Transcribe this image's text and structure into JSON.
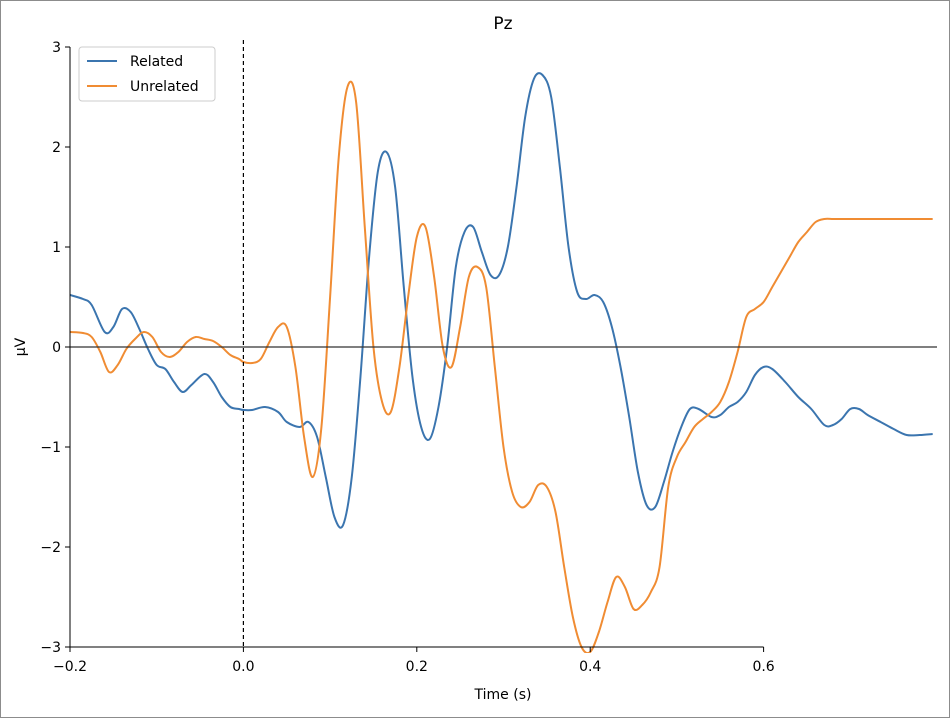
{
  "chart_data": {
    "type": "line",
    "title": "Pz",
    "xlabel": "Time (s)",
    "ylabel": "µV",
    "xlim": [
      -0.2,
      0.8
    ],
    "ylim": [
      -3,
      3
    ],
    "xticks": [
      -0.2,
      0.0,
      0.2,
      0.4,
      0.6
    ],
    "xtick_labels": [
      "−0.2",
      "0.0",
      "0.2",
      "0.4",
      "0.6"
    ],
    "yticks": [
      -3,
      -2,
      -1,
      0,
      1,
      2,
      3
    ],
    "ytick_labels": [
      "−3",
      "−2",
      "−1",
      "0",
      "1",
      "2",
      "3"
    ],
    "legend_position": "top-left",
    "grid": false,
    "series": [
      {
        "name": "Related",
        "color": "#3b75af",
        "x": [
          -0.2,
          -0.185,
          -0.175,
          -0.16,
          -0.15,
          -0.14,
          -0.13,
          -0.12,
          -0.11,
          -0.1,
          -0.09,
          -0.08,
          -0.07,
          -0.06,
          -0.045,
          -0.035,
          -0.025,
          -0.015,
          -0.005,
          0.0,
          0.01,
          0.025,
          0.04,
          0.05,
          0.065,
          0.075,
          0.085,
          0.095,
          0.105,
          0.115,
          0.125,
          0.135,
          0.145,
          0.155,
          0.165,
          0.175,
          0.185,
          0.195,
          0.205,
          0.215,
          0.225,
          0.235,
          0.245,
          0.255,
          0.265,
          0.275,
          0.285,
          0.295,
          0.305,
          0.315,
          0.325,
          0.335,
          0.345,
          0.355,
          0.365,
          0.375,
          0.385,
          0.395,
          0.405,
          0.415,
          0.425,
          0.435,
          0.445,
          0.455,
          0.465,
          0.475,
          0.485,
          0.495,
          0.505,
          0.515,
          0.525,
          0.54,
          0.55,
          0.56,
          0.57,
          0.58,
          0.59,
          0.6,
          0.61,
          0.625,
          0.64,
          0.655,
          0.67,
          0.68,
          0.69,
          0.7,
          0.71,
          0.72,
          0.735,
          0.75,
          0.765,
          0.78,
          0.795
        ],
        "y": [
          0.52,
          0.48,
          0.42,
          0.15,
          0.2,
          0.38,
          0.35,
          0.18,
          -0.02,
          -0.18,
          -0.22,
          -0.35,
          -0.45,
          -0.38,
          -0.27,
          -0.35,
          -0.5,
          -0.6,
          -0.62,
          -0.63,
          -0.63,
          -0.6,
          -0.65,
          -0.75,
          -0.8,
          -0.75,
          -0.9,
          -1.3,
          -1.7,
          -1.78,
          -1.3,
          -0.3,
          0.9,
          1.75,
          1.95,
          1.6,
          0.6,
          -0.3,
          -0.8,
          -0.92,
          -0.6,
          0.0,
          0.8,
          1.15,
          1.2,
          0.95,
          0.72,
          0.72,
          1.0,
          1.6,
          2.3,
          2.68,
          2.72,
          2.5,
          1.8,
          1.0,
          0.55,
          0.48,
          0.52,
          0.45,
          0.2,
          -0.2,
          -0.7,
          -1.25,
          -1.58,
          -1.6,
          -1.35,
          -1.05,
          -0.8,
          -0.62,
          -0.62,
          -0.7,
          -0.68,
          -0.6,
          -0.55,
          -0.45,
          -0.28,
          -0.2,
          -0.22,
          -0.35,
          -0.5,
          -0.62,
          -0.78,
          -0.78,
          -0.72,
          -0.62,
          -0.62,
          -0.68,
          -0.75,
          -0.82,
          -0.88,
          -0.88,
          -0.87
        ]
      },
      {
        "name": "Unrelated",
        "color": "#f08c33",
        "x": [
          -0.2,
          -0.185,
          -0.175,
          -0.165,
          -0.155,
          -0.145,
          -0.135,
          -0.125,
          -0.115,
          -0.105,
          -0.095,
          -0.085,
          -0.075,
          -0.065,
          -0.055,
          -0.045,
          -0.035,
          -0.025,
          -0.015,
          -0.005,
          0.0,
          0.01,
          0.02,
          0.03,
          0.04,
          0.05,
          0.06,
          0.07,
          0.08,
          0.09,
          0.1,
          0.11,
          0.12,
          0.13,
          0.14,
          0.15,
          0.16,
          0.17,
          0.18,
          0.19,
          0.2,
          0.21,
          0.22,
          0.23,
          0.24,
          0.25,
          0.26,
          0.27,
          0.28,
          0.29,
          0.3,
          0.31,
          0.32,
          0.33,
          0.34,
          0.35,
          0.36,
          0.37,
          0.38,
          0.39,
          0.4,
          0.41,
          0.42,
          0.43,
          0.44,
          0.45,
          0.46,
          0.47,
          0.48,
          0.49,
          0.5,
          0.51,
          0.52,
          0.53,
          0.54,
          0.55,
          0.56,
          0.57,
          0.58,
          0.59,
          0.6,
          0.61,
          0.62,
          0.63,
          0.64,
          0.65,
          0.66,
          0.67,
          0.68,
          0.69,
          0.7,
          0.71,
          0.72,
          0.73,
          0.74,
          0.75,
          0.76,
          0.77,
          0.78,
          0.79,
          0.795
        ],
        "y": [
          0.15,
          0.14,
          0.1,
          -0.05,
          -0.25,
          -0.18,
          -0.02,
          0.08,
          0.15,
          0.1,
          -0.05,
          -0.1,
          -0.05,
          0.05,
          0.1,
          0.08,
          0.06,
          0.0,
          -0.08,
          -0.12,
          -0.15,
          -0.16,
          -0.12,
          0.05,
          0.2,
          0.2,
          -0.2,
          -0.9,
          -1.3,
          -0.8,
          0.5,
          1.9,
          2.6,
          2.45,
          1.2,
          0.0,
          -0.55,
          -0.65,
          -0.2,
          0.5,
          1.1,
          1.2,
          0.7,
          0.0,
          -0.2,
          0.2,
          0.7,
          0.8,
          0.6,
          -0.2,
          -1.0,
          -1.45,
          -1.6,
          -1.55,
          -1.38,
          -1.4,
          -1.65,
          -2.2,
          -2.7,
          -3.0,
          -3.05,
          -2.85,
          -2.55,
          -2.3,
          -2.4,
          -2.62,
          -2.58,
          -2.45,
          -2.2,
          -1.4,
          -1.1,
          -0.95,
          -0.8,
          -0.72,
          -0.65,
          -0.55,
          -0.35,
          -0.05,
          0.3,
          0.38,
          0.45,
          0.6,
          0.75,
          0.9,
          1.05,
          1.15,
          1.25,
          1.28,
          1.28,
          1.28,
          1.28,
          1.28,
          1.28,
          1.28,
          1.28,
          1.28,
          1.28,
          1.28,
          1.28,
          1.28,
          1.28
        ]
      }
    ]
  }
}
